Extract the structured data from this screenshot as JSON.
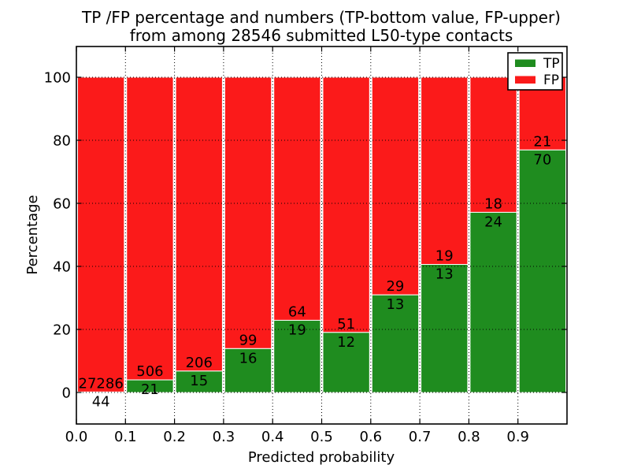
{
  "figure": {
    "background": "#ffffff"
  },
  "chart_data": {
    "type": "bar",
    "stacked": true,
    "title_line1": "TP /FP percentage and numbers (TP-bottom value, FP-upper)",
    "title_line2": "from among 28546 submitted L50-type contacts",
    "title": "TP /FP percentage and numbers (TP-bottom value, FP-upper) from among 28546 submitted L50-type contacts",
    "total_submitted": 28546,
    "xlabel": "Predicted probability",
    "ylabel": "Percentage",
    "x_tick_labels": [
      "0.0",
      "0.1",
      "0.2",
      "0.3",
      "0.4",
      "0.5",
      "0.6",
      "0.7",
      "0.8",
      "0.9"
    ],
    "y_tick_labels": [
      "0",
      "20",
      "40",
      "60",
      "80",
      "100"
    ],
    "y_ticks": [
      0,
      20,
      40,
      60,
      80,
      100
    ],
    "xlim": [
      0.0,
      1.0
    ],
    "ylim": [
      -10,
      110
    ],
    "bin_width": 0.1,
    "bin_starts": [
      0.0,
      0.1,
      0.2,
      0.3,
      0.4,
      0.5,
      0.6,
      0.7,
      0.8,
      0.9
    ],
    "grid": "dotted",
    "legend_position": "upper right",
    "bar_edge_color": "#ffffff",
    "series": [
      {
        "name": "TP",
        "color": "#1f8c1f",
        "counts": [
          44,
          21,
          15,
          16,
          19,
          12,
          13,
          13,
          24,
          70
        ]
      },
      {
        "name": "FP",
        "color": "#fb1a1a",
        "counts": [
          27286,
          506,
          206,
          99,
          64,
          51,
          29,
          19,
          18,
          21
        ]
      }
    ],
    "tp_percent": [
      0.16,
      3.98,
      6.79,
      13.91,
      22.89,
      19.05,
      30.95,
      40.63,
      57.14,
      76.92
    ],
    "fp_percent": [
      99.84,
      96.02,
      93.21,
      86.09,
      77.11,
      80.95,
      69.05,
      59.37,
      42.86,
      23.08
    ]
  }
}
